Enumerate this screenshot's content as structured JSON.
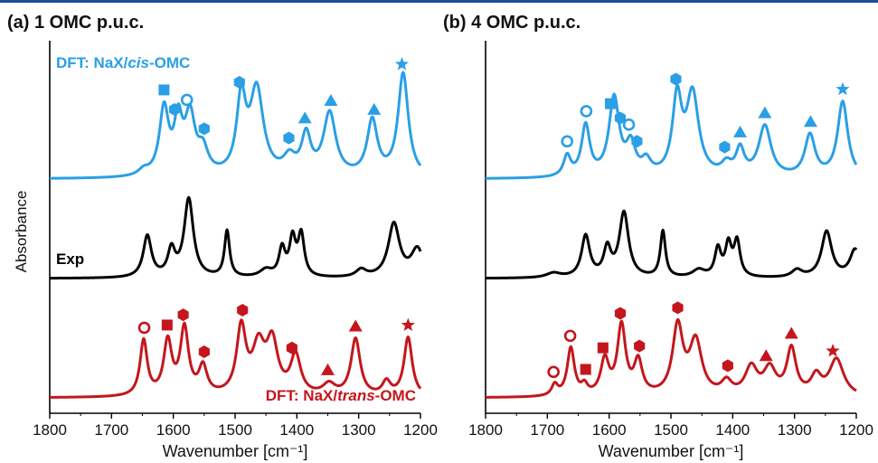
{
  "colors": {
    "cis": "#2a9fe6",
    "exp": "#000000",
    "trans": "#c4161c",
    "topline": "#1f4e9a"
  },
  "panels": [
    {
      "id": "a",
      "title": "(a) 1 OMC p.u.c.",
      "xlabel": "Wavenumber [cm⁻¹]"
    },
    {
      "id": "b",
      "title": "(b) 4 OMC p.u.c.",
      "xlabel": "Wavenumber [cm⁻¹]"
    }
  ],
  "ylabel": "Absorbance",
  "labels": {
    "cis": "DFT: NaX/cis-OMC",
    "exp": "Exp",
    "trans": "DFT: NaX/trans-OMC"
  },
  "chart_data": [
    {
      "type": "line",
      "title": "(a) 1 OMC p.u.c.",
      "xlabel": "Wavenumber [cm⁻¹]",
      "ylabel": "Absorbance",
      "xlim": [
        1800,
        1200
      ],
      "xticks": [
        1800,
        1700,
        1600,
        1500,
        1400,
        1300,
        1200
      ],
      "series": [
        {
          "name": "DFT: NaX/cis-OMC",
          "color": "#2a9fe6",
          "offset": 2.2,
          "peaks": [
            [
              1648,
              0.06,
              10
            ],
            [
              1615,
              0.72,
              9
            ],
            [
              1592,
              0.55,
              8
            ],
            [
              1573,
              0.62,
              10
            ],
            [
              1552,
              0.25,
              10
            ],
            [
              1490,
              0.8,
              9
            ],
            [
              1465,
              0.92,
              13
            ],
            [
              1412,
              0.18,
              12
            ],
            [
              1385,
              0.42,
              9
            ],
            [
              1347,
              0.68,
              12
            ],
            [
              1278,
              0.6,
              10
            ],
            [
              1228,
              1.12,
              10
            ]
          ],
          "markers": [
            [
              1615,
              "square"
            ],
            [
              1598,
              "hexagon"
            ],
            [
              1578,
              "circle"
            ],
            [
              1550,
              "hexagon"
            ],
            [
              1493,
              "hexagon"
            ],
            [
              1413,
              "hexagon"
            ],
            [
              1387,
              "triangle"
            ],
            [
              1345,
              "triangle"
            ],
            [
              1275,
              "triangle"
            ],
            [
              1230,
              "star"
            ]
          ]
        },
        {
          "name": "Exp",
          "color": "#000000",
          "offset": 1.1,
          "peaks": [
            [
              1642,
              0.45,
              8
            ],
            [
              1603,
              0.28,
              7
            ],
            [
              1575,
              0.85,
              9
            ],
            [
              1513,
              0.5,
              5
            ],
            [
              1450,
              0.08,
              12
            ],
            [
              1424,
              0.3,
              6
            ],
            [
              1407,
              0.4,
              6
            ],
            [
              1393,
              0.45,
              6
            ],
            [
              1296,
              0.08,
              10
            ],
            [
              1243,
              0.58,
              11
            ],
            [
              1205,
              0.3,
              12
            ]
          ],
          "markers": []
        },
        {
          "name": "DFT: NaX/trans-OMC",
          "color": "#c4161c",
          "offset": 0.0,
          "peaks": [
            [
              1648,
              0.6,
              7
            ],
            [
              1609,
              0.58,
              8
            ],
            [
              1582,
              0.72,
              8
            ],
            [
              1552,
              0.3,
              8
            ],
            [
              1490,
              0.72,
              9
            ],
            [
              1462,
              0.5,
              12
            ],
            [
              1440,
              0.55,
              11
            ],
            [
              1402,
              0.42,
              10
            ],
            [
              1348,
              0.12,
              12
            ],
            [
              1305,
              0.62,
              9
            ],
            [
              1255,
              0.15,
              8
            ],
            [
              1220,
              0.64,
              8
            ]
          ],
          "markers": [
            [
              1647,
              "circle"
            ],
            [
              1610,
              "square"
            ],
            [
              1584,
              "hexagon"
            ],
            [
              1550,
              "hexagon"
            ],
            [
              1488,
              "hexagon"
            ],
            [
              1408,
              "hexagon"
            ],
            [
              1350,
              "triangle"
            ],
            [
              1305,
              "triangle"
            ],
            [
              1220,
              "star"
            ]
          ]
        }
      ]
    },
    {
      "type": "line",
      "title": "(b) 4 OMC p.u.c.",
      "xlabel": "Wavenumber [cm⁻¹]",
      "ylabel": "Absorbance",
      "xlim": [
        1800,
        1200
      ],
      "xticks": [
        1800,
        1700,
        1600,
        1500,
        1400,
        1300,
        1200
      ],
      "series": [
        {
          "name": "DFT: NaX/cis-OMC",
          "color": "#2a9fe6",
          "offset": 2.2,
          "peaks": [
            [
              1668,
              0.22,
              7
            ],
            [
              1638,
              0.55,
              8
            ],
            [
              1592,
              0.85,
              10
            ],
            [
              1565,
              0.32,
              9
            ],
            [
              1540,
              0.15,
              9
            ],
            [
              1490,
              0.82,
              9
            ],
            [
              1465,
              0.88,
              12
            ],
            [
              1410,
              0.12,
              10
            ],
            [
              1388,
              0.28,
              8
            ],
            [
              1348,
              0.55,
              12
            ],
            [
              1275,
              0.45,
              10
            ],
            [
              1222,
              0.82,
              10
            ]
          ],
          "markers": [
            [
              1668,
              "circle"
            ],
            [
              1637,
              "circle"
            ],
            [
              1598,
              "square"
            ],
            [
              1582,
              "hexagon"
            ],
            [
              1568,
              "circle"
            ],
            [
              1555,
              "hexagon"
            ],
            [
              1492,
              "hexagon"
            ],
            [
              1413,
              "hexagon"
            ],
            [
              1388,
              "triangle"
            ],
            [
              1348,
              "triangle"
            ],
            [
              1274,
              "triangle"
            ],
            [
              1222,
              "star"
            ]
          ]
        },
        {
          "name": "Exp",
          "color": "#000000",
          "offset": 1.1,
          "peaks": [
            [
              1690,
              0.05,
              14
            ],
            [
              1638,
              0.45,
              8
            ],
            [
              1603,
              0.3,
              7
            ],
            [
              1576,
              0.7,
              9
            ],
            [
              1513,
              0.5,
              5
            ],
            [
              1455,
              0.08,
              12
            ],
            [
              1424,
              0.3,
              6
            ],
            [
              1407,
              0.34,
              6
            ],
            [
              1393,
              0.38,
              6
            ],
            [
              1296,
              0.08,
              10
            ],
            [
              1248,
              0.5,
              10
            ],
            [
              1202,
              0.3,
              10
            ]
          ],
          "markers": []
        },
        {
          "name": "DFT: NaX/trans-OMC",
          "color": "#c4161c",
          "offset": 0.0,
          "peaks": [
            [
              1688,
              0.12,
              6
            ],
            [
              1662,
              0.52,
              7
            ],
            [
              1640,
              0.1,
              6
            ],
            [
              1607,
              0.38,
              8
            ],
            [
              1580,
              0.75,
              8
            ],
            [
              1553,
              0.36,
              8
            ],
            [
              1489,
              0.74,
              10
            ],
            [
              1460,
              0.58,
              12
            ],
            [
              1410,
              0.14,
              10
            ],
            [
              1370,
              0.3,
              12
            ],
            [
              1340,
              0.28,
              12
            ],
            [
              1305,
              0.5,
              9
            ],
            [
              1265,
              0.2,
              10
            ],
            [
              1232,
              0.4,
              14
            ]
          ],
          "markers": [
            [
              1690,
              "circle"
            ],
            [
              1663,
              "circle"
            ],
            [
              1638,
              "square"
            ],
            [
              1610,
              "square"
            ],
            [
              1582,
              "hexagon"
            ],
            [
              1551,
              "hexagon"
            ],
            [
              1489,
              "hexagon"
            ],
            [
              1408,
              "hexagon"
            ],
            [
              1346,
              "triangle"
            ],
            [
              1305,
              "triangle"
            ],
            [
              1238,
              "star"
            ]
          ]
        }
      ]
    }
  ]
}
